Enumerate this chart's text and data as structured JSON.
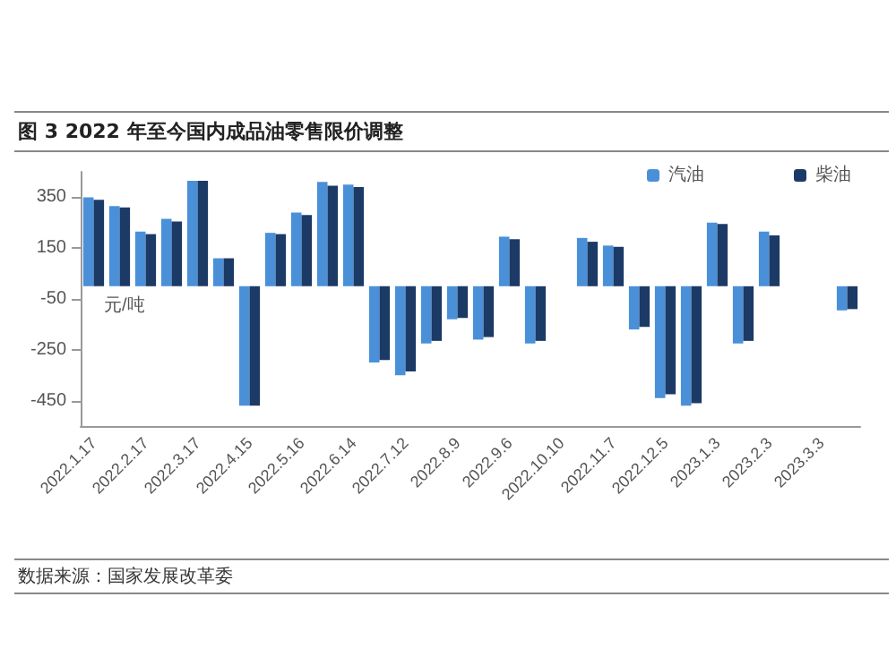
{
  "chart_data": {
    "type": "bar",
    "title": "图 3  2022 年至今国内成品油零售限价调整",
    "ylabel": "元/吨",
    "annotations": [
      "数据来源：国家发展改革委"
    ],
    "categories": [
      "2022.1.17",
      null,
      "2022.2.17",
      null,
      "2022.3.17",
      null,
      "2022.4.15",
      null,
      "2022.5.16",
      null,
      "2022.6.14",
      null,
      "2022.7.12",
      null,
      "2022.8.9",
      null,
      "2022.9.6",
      null,
      "2022.10.10",
      null,
      "2022.11.7",
      null,
      "2022.12.5",
      null,
      "2023.1.3",
      null,
      "2023.2.3",
      null,
      "2023.3.3",
      null
    ],
    "series": [
      {
        "name": "汽油",
        "color": "#4a90d9",
        "values": [
          350,
          315,
          215,
          265,
          415,
          110,
          -470,
          210,
          290,
          410,
          400,
          -300,
          -350,
          -225,
          -130,
          -210,
          195,
          -225,
          null,
          190,
          160,
          -170,
          -440,
          -470,
          250,
          -225,
          215,
          null,
          null,
          -95
        ]
      },
      {
        "name": "柴油",
        "color": "#1c3a66",
        "values": [
          340,
          310,
          205,
          255,
          415,
          110,
          -470,
          205,
          280,
          395,
          390,
          -290,
          -335,
          -215,
          -125,
          -200,
          185,
          -215,
          null,
          175,
          155,
          -160,
          -425,
          -460,
          245,
          -215,
          200,
          null,
          null,
          -90
        ]
      }
    ],
    "ylim": [
      -550,
      450
    ],
    "yticks": [
      350,
      150,
      -50,
      -250,
      -450
    ],
    "grid": false,
    "legend": "top right"
  }
}
